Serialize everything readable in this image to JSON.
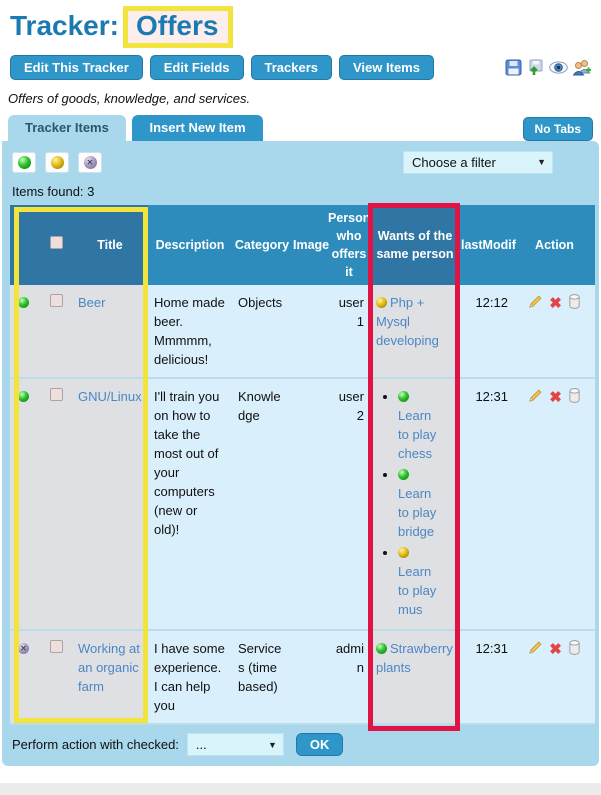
{
  "page": {
    "title_prefix": "Tracker:",
    "title_highlight": "Offers",
    "subtitle": "Offers of goods, knowledge, and services."
  },
  "toolbar": {
    "buttons": [
      "Edit This Tracker",
      "Edit Fields",
      "Trackers",
      "View Items"
    ],
    "icons": [
      "save-icon",
      "import-icon",
      "watch-icon",
      "admin-users-icon"
    ]
  },
  "tabs": {
    "items": [
      "Tracker Items",
      "Insert New Item"
    ],
    "active": "Tracker Items",
    "no_tabs_label": "No Tabs"
  },
  "filter": {
    "status_filters": [
      "open",
      "pending",
      "closed"
    ],
    "select_value": "Choose a filter"
  },
  "items_found_label": "Items found: 3",
  "table": {
    "headers": {
      "status": "",
      "checkbox": "",
      "title": "Title",
      "description": "Description",
      "category": "Category",
      "image": "Image",
      "person": "Person who offers it",
      "wants": "Wants of the same person",
      "lastmodif": "lastModif",
      "action": "Action"
    },
    "row_actions": [
      "edit",
      "remove",
      "trash"
    ],
    "rows": [
      {
        "status": "open",
        "title": "Beer",
        "description": "Home made beer. Mmmmm, delicious!",
        "category": "Objects",
        "image": "",
        "person": "user1",
        "wants": [
          {
            "status": "pending",
            "text": "Php + Mysql developing"
          }
        ],
        "lastmodif": "12:12"
      },
      {
        "status": "open",
        "title": "GNU/Linux",
        "description": "I'll train you on how to take the most out of your computers (new or old)!",
        "category": "Knowledge",
        "image": "",
        "person": "user2",
        "wants": [
          {
            "status": "open",
            "text": "Learn to play chess"
          },
          {
            "status": "open",
            "text": "Learn to play bridge"
          },
          {
            "status": "pending",
            "text": "Learn to play mus"
          }
        ],
        "lastmodif": "12:31"
      },
      {
        "status": "closed",
        "title": "Working at an organic farm",
        "description": "I have some experience. I can help you",
        "category": "Services (time based)",
        "image": "",
        "person": "admin",
        "wants": [
          {
            "status": "open",
            "text": "Strawberry plants"
          }
        ],
        "lastmodif": "12:31"
      }
    ]
  },
  "footer": {
    "label": "Perform action with checked:",
    "select_value": "...",
    "ok_label": "OK"
  },
  "colors": {
    "accent": "#2e96c8",
    "panel": "#a9d8ec",
    "table_header": "#2e8cbd",
    "table_header_annotated": "#2f76a4",
    "cell": "#d9effb",
    "cell_annotated": "#dfe0e3",
    "link": "#4a87c4",
    "highlight_yellow": "#f2e43c",
    "highlight_red": "#e01345",
    "title_blue": "#1b7ab1"
  }
}
